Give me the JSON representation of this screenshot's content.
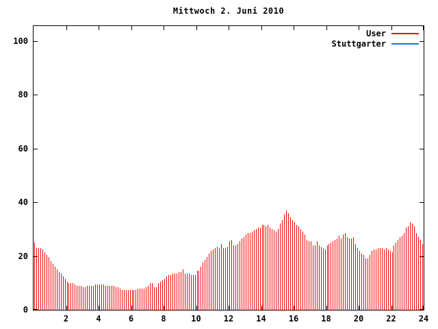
{
  "title": "Mittwoch 2. Juni 2010",
  "legend": [
    {
      "label": "User",
      "color": "#ef0000"
    },
    {
      "label": "Stuttgarter",
      "color": "#1874cd"
    }
  ],
  "colors": {
    "bar_red": "#ef0000",
    "stuttgarter_blue": "#1874cd",
    "axis": "#000000",
    "background": "#ffffff"
  },
  "chart_data": {
    "type": "bar",
    "title": "Mittwoch 2. Juni 2010",
    "xlabel": "",
    "ylabel": "",
    "xlim": [
      0,
      24
    ],
    "ylim": [
      0,
      105.5
    ],
    "x_ticks": [
      2,
      4,
      6,
      8,
      10,
      12,
      14,
      16,
      18,
      20,
      22,
      24
    ],
    "y_ticks": [
      0,
      20,
      40,
      60,
      80,
      100
    ],
    "grid": false,
    "legend_position": "top-right",
    "bar_style": "impulses",
    "x_start_hour": 0,
    "x_step_hours": 0.125,
    "series": [
      {
        "name": "User",
        "color": "#ef0000",
        "values": [
          25,
          23,
          23,
          23,
          22.5,
          21.5,
          20.5,
          19.5,
          18,
          17,
          16,
          15,
          14,
          13.5,
          12.5,
          11.5,
          10.5,
          10,
          10,
          10,
          9.5,
          9,
          9,
          9,
          8.5,
          8.5,
          9,
          9,
          9,
          9,
          9.5,
          9.5,
          9.5,
          9.5,
          9.5,
          9,
          9,
          9,
          9,
          9,
          8.5,
          8.5,
          8,
          7.5,
          7.5,
          7.5,
          7.5,
          7.5,
          7.5,
          7.5,
          7.5,
          8,
          8,
          8,
          8,
          8.5,
          9,
          10,
          10,
          8.5,
          8.5,
          10,
          10.5,
          11,
          11.5,
          12.5,
          13,
          13,
          13.5,
          13.5,
          13.5,
          14,
          14,
          15,
          13.5,
          13.5,
          13.5,
          13,
          13,
          13,
          14.5,
          14.5,
          16,
          17.5,
          18.5,
          19.5,
          21,
          22,
          22.5,
          23,
          23.5,
          23,
          24.5,
          23,
          23,
          23.5,
          25.5,
          26,
          24,
          24,
          24.5,
          25.5,
          26.5,
          27,
          28,
          28.5,
          28.5,
          29,
          29.5,
          30,
          30.5,
          30.5,
          31.5,
          31.5,
          31,
          31.5,
          30.5,
          30,
          29.5,
          29,
          30,
          32,
          33.5,
          35.5,
          37,
          36,
          34.5,
          33.5,
          32.5,
          31.5,
          31,
          30,
          29,
          28,
          26,
          25.5,
          25.5,
          24,
          24,
          25.5,
          24,
          23.5,
          23,
          22.5,
          24,
          24.5,
          25,
          25.5,
          26,
          26.5,
          27.5,
          26.5,
          28,
          28.5,
          27,
          26.5,
          26.5,
          27,
          24.5,
          23,
          22,
          21,
          20.5,
          19,
          19,
          20.5,
          22,
          22.5,
          22.5,
          23,
          23,
          23,
          22.5,
          23,
          22.5,
          22,
          21.5,
          24,
          25,
          26,
          27,
          27.5,
          28.5,
          30.5,
          31,
          32.5,
          32,
          31,
          28.5,
          27,
          26,
          24.5
        ]
      },
      {
        "name": "Stuttgarter",
        "color": "#1874cd",
        "values": []
      }
    ]
  }
}
